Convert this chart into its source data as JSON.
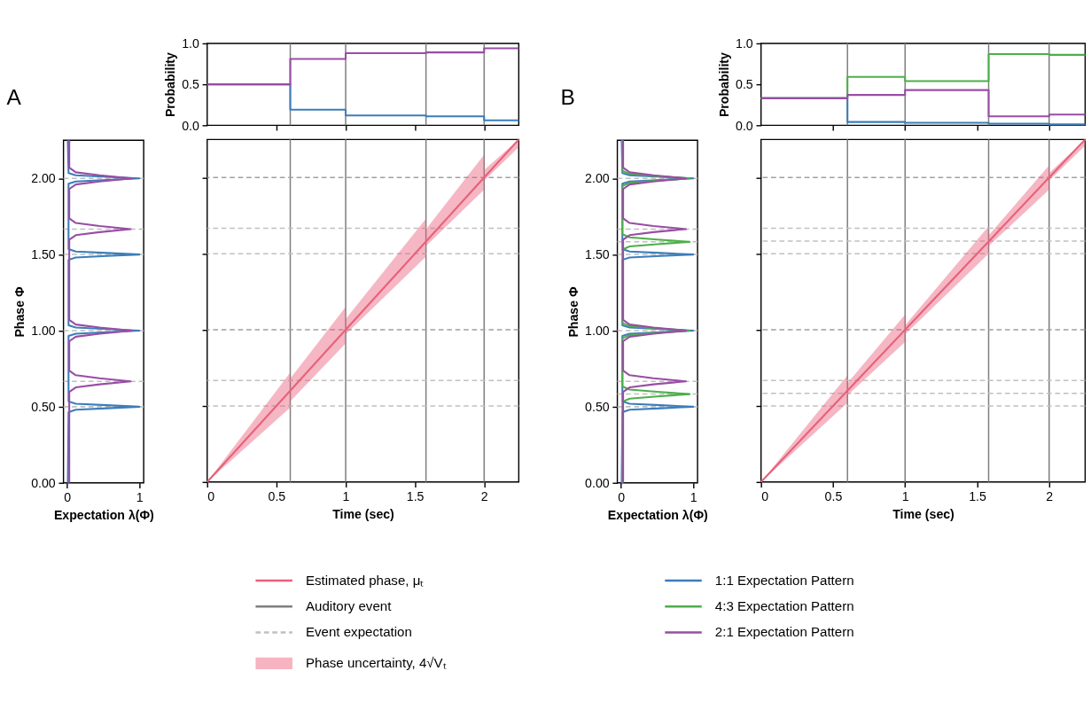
{
  "chart_data": [
    {
      "type": "step",
      "ylabel": "Probability",
      "xlim": [
        0,
        2.25
      ],
      "ylim": [
        0,
        1
      ],
      "xticks": [
        {
          "value": 0.5,
          "label": null
        },
        {
          "value": 1,
          "label": null
        },
        {
          "value": 1.5,
          "label": null
        },
        {
          "value": 2,
          "label": null
        }
      ],
      "yticks": [
        {
          "value": 0,
          "label": "0.0"
        },
        {
          "value": 0.5,
          "label": "0.5"
        },
        {
          "value": 1,
          "label": "1.0"
        }
      ],
      "tick_labels": "y",
      "series": [
        {
          "color": "#3b7dba",
          "x": [
            0,
            0.6,
            1.0,
            1.58,
            2.0,
            2.25
          ],
          "values": [
            0.5,
            0.19,
            0.12,
            0.11,
            0.06,
            0.06
          ]
        },
        {
          "color": "#984ea3",
          "x": [
            0,
            0.6,
            1.0,
            1.58,
            2.0,
            2.25
          ],
          "values": [
            0.5,
            0.81,
            0.88,
            0.89,
            0.94,
            0.94
          ]
        }
      ],
      "ref_lines": [
        {
          "axis": "x",
          "value": 0.6,
          "color": "#7f7f7f"
        },
        {
          "axis": "x",
          "value": 1.0,
          "color": "#7f7f7f"
        },
        {
          "axis": "x",
          "value": 1.58,
          "color": "#7f7f7f"
        },
        {
          "axis": "x",
          "value": 2.0,
          "color": "#7f7f7f"
        }
      ]
    },
    {
      "type": "line",
      "title": "A",
      "orientation": "horizontal",
      "xlabel": "Expectation λ(Φ)",
      "ylabel": "Phase Φ",
      "xlim": [
        -0.05,
        1.06
      ],
      "ylim": [
        0,
        2.25
      ],
      "xticks": [
        0,
        1
      ],
      "yticks": [
        {
          "value": 0,
          "label": "0.00"
        },
        {
          "value": 0.5,
          "label": "0.50"
        },
        {
          "value": 1,
          "label": "1.00"
        },
        {
          "value": 1.5,
          "label": "1.50"
        },
        {
          "value": 2,
          "label": "2.00"
        }
      ],
      "series": [
        {
          "color": "#3b7dba",
          "x": [
            0,
            0.465,
            0.48,
            0.49,
            0.5,
            0.51,
            0.52,
            0.535,
            0.965,
            0.98,
            0.99,
            1.0,
            1.01,
            1.02,
            1.035,
            1.465,
            1.48,
            1.49,
            1.5,
            1.51,
            1.52,
            1.535,
            1.965,
            1.98,
            1.99,
            2.0,
            2.01,
            2.02,
            2.035,
            2.25
          ],
          "values": [
            0.01,
            0.02,
            0.12,
            0.55,
            1.0,
            0.55,
            0.12,
            0.02,
            0.02,
            0.12,
            0.55,
            1.0,
            0.55,
            0.12,
            0.02,
            0.02,
            0.12,
            0.55,
            1.0,
            0.55,
            0.12,
            0.02,
            0.02,
            0.12,
            0.55,
            1.0,
            0.55,
            0.12,
            0.02,
            0.01
          ]
        },
        {
          "color": "#984ea3",
          "x": [
            0,
            0.597,
            0.627,
            0.647,
            0.667,
            0.687,
            0.707,
            0.737,
            0.93,
            0.96,
            0.98,
            1.0,
            1.02,
            1.04,
            1.07,
            1.597,
            1.627,
            1.647,
            1.667,
            1.687,
            1.707,
            1.737,
            1.93,
            1.96,
            1.98,
            2.0,
            2.02,
            2.04,
            2.07,
            2.25
          ],
          "values": [
            0.03,
            0.03,
            0.12,
            0.45,
            0.88,
            0.45,
            0.12,
            0.03,
            0.03,
            0.12,
            0.45,
            0.9,
            0.45,
            0.12,
            0.03,
            0.03,
            0.12,
            0.45,
            0.88,
            0.45,
            0.12,
            0.03,
            0.03,
            0.12,
            0.45,
            0.9,
            0.45,
            0.12,
            0.03,
            0.03
          ]
        }
      ],
      "ref_lines": [
        {
          "axis": "y",
          "value": 0.5,
          "color": "#c0c0c0",
          "line_style": "dashed"
        },
        {
          "axis": "y",
          "value": 0.667,
          "color": "#c0c0c0",
          "line_style": "dashed"
        },
        {
          "axis": "y",
          "value": 1.0,
          "color": "#c0c0c0",
          "line_style": "dashed"
        },
        {
          "axis": "y",
          "value": 1.5,
          "color": "#c0c0c0",
          "line_style": "dashed"
        },
        {
          "axis": "y",
          "value": 1.667,
          "color": "#c0c0c0",
          "line_style": "dashed"
        },
        {
          "axis": "y",
          "value": 2.0,
          "color": "#c0c0c0",
          "line_style": "dashed"
        }
      ]
    },
    {
      "type": "line",
      "xlabel": "Time (sec)",
      "xlim": [
        0,
        2.25
      ],
      "ylim": [
        0,
        2.25
      ],
      "xticks": [
        0,
        0.5,
        1,
        1.5,
        2
      ],
      "yticks": [
        {
          "value": 0,
          "label": null
        },
        {
          "value": 0.5,
          "label": null
        },
        {
          "value": 1,
          "label": null
        },
        {
          "value": 1.5,
          "label": null
        },
        {
          "value": 2,
          "label": null
        }
      ],
      "tick_labels": "x",
      "series": [
        {
          "color": "#e8607a",
          "x": [
            0,
            0.6,
            0.6,
            1.0,
            1.0,
            1.58,
            1.58,
            2.0,
            2.0,
            2.25
          ],
          "values": [
            0,
            0.6,
            0.6,
            1.0,
            1.0,
            1.58,
            1.58,
            2.0,
            2.0,
            2.25
          ],
          "lower": [
            0,
            0.49,
            0.53,
            0.91,
            0.97,
            1.48,
            1.55,
            1.92,
            1.98,
            2.2
          ],
          "upper": [
            0,
            0.72,
            0.68,
            1.15,
            1.07,
            1.73,
            1.66,
            2.15,
            2.05,
            2.25
          ]
        }
      ],
      "ref_lines": [
        {
          "axis": "x",
          "value": 0.6,
          "color": "#7f7f7f"
        },
        {
          "axis": "x",
          "value": 1.0,
          "color": "#7f7f7f"
        },
        {
          "axis": "x",
          "value": 1.58,
          "color": "#7f7f7f"
        },
        {
          "axis": "x",
          "value": 2.0,
          "color": "#7f7f7f"
        },
        {
          "axis": "y",
          "value": 0.5,
          "color": "#c0c0c0",
          "line_style": "dashed"
        },
        {
          "axis": "y",
          "value": 0.667,
          "color": "#c0c0c0",
          "line_style": "dashed"
        },
        {
          "axis": "y",
          "value": 1.0,
          "color": "#a0a0a0",
          "line_style": "dashed"
        },
        {
          "axis": "y",
          "value": 1.5,
          "color": "#c0c0c0",
          "line_style": "dashed"
        },
        {
          "axis": "y",
          "value": 1.667,
          "color": "#c0c0c0",
          "line_style": "dashed"
        },
        {
          "axis": "y",
          "value": 2.0,
          "color": "#a0a0a0",
          "line_style": "dashed"
        }
      ]
    },
    {
      "type": "step",
      "ylabel": "Probability",
      "xlim": [
        0,
        2.25
      ],
      "ylim": [
        0,
        1
      ],
      "xticks": [
        {
          "value": 0.5,
          "label": null
        },
        {
          "value": 1,
          "label": null
        },
        {
          "value": 1.5,
          "label": null
        },
        {
          "value": 2,
          "label": null
        }
      ],
      "yticks": [
        {
          "value": 0,
          "label": "0.0"
        },
        {
          "value": 0.5,
          "label": "0.5"
        },
        {
          "value": 1,
          "label": "1.0"
        }
      ],
      "tick_labels": "y",
      "series": [
        {
          "color": "#3b7dba",
          "x": [
            0,
            0.6,
            1.0,
            1.58,
            2.0,
            2.25
          ],
          "values": [
            0.33,
            0.04,
            0.03,
            0.02,
            0.01,
            0.01
          ]
        },
        {
          "color": "#4daf4a",
          "x": [
            0,
            0.6,
            1.0,
            1.58,
            2.0,
            2.25
          ],
          "values": [
            0.33,
            0.59,
            0.54,
            0.87,
            0.86,
            0.86
          ]
        },
        {
          "color": "#984ea3",
          "x": [
            0,
            0.6,
            1.0,
            1.58,
            2.0,
            2.25
          ],
          "values": [
            0.33,
            0.37,
            0.43,
            0.11,
            0.13,
            0.13
          ]
        }
      ],
      "ref_lines": [
        {
          "axis": "x",
          "value": 0.6,
          "color": "#7f7f7f"
        },
        {
          "axis": "x",
          "value": 1.0,
          "color": "#7f7f7f"
        },
        {
          "axis": "x",
          "value": 1.58,
          "color": "#7f7f7f"
        },
        {
          "axis": "x",
          "value": 2.0,
          "color": "#7f7f7f"
        }
      ]
    },
    {
      "type": "line",
      "title": "B",
      "orientation": "horizontal",
      "xlabel": "Expectation λ(Φ)",
      "ylabel": "Phase Φ",
      "xlim": [
        -0.05,
        1.06
      ],
      "ylim": [
        0,
        2.25
      ],
      "xticks": [
        0,
        1
      ],
      "yticks": [
        {
          "value": 0,
          "label": "0.00"
        },
        {
          "value": 0.5,
          "label": "0.50"
        },
        {
          "value": 1,
          "label": "1.00"
        },
        {
          "value": 1.5,
          "label": "1.50"
        },
        {
          "value": 2,
          "label": "2.00"
        }
      ],
      "series": [
        {
          "color": "#3b7dba",
          "x": [
            0,
            0.465,
            0.48,
            0.49,
            0.5,
            0.51,
            0.52,
            0.535,
            0.965,
            0.98,
            0.99,
            1.0,
            1.01,
            1.02,
            1.035,
            1.465,
            1.48,
            1.49,
            1.5,
            1.51,
            1.52,
            1.535,
            1.965,
            1.98,
            1.99,
            2.0,
            2.01,
            2.02,
            2.035,
            2.25
          ],
          "values": [
            0.01,
            0.02,
            0.12,
            0.55,
            1.0,
            0.55,
            0.12,
            0.02,
            0.02,
            0.12,
            0.55,
            1.0,
            0.55,
            0.12,
            0.02,
            0.02,
            0.12,
            0.55,
            1.0,
            0.55,
            0.12,
            0.02,
            0.02,
            0.12,
            0.55,
            1.0,
            0.55,
            0.12,
            0.02,
            0.01
          ]
        },
        {
          "color": "#4daf4a",
          "x": [
            0,
            0.533,
            0.553,
            0.568,
            0.583,
            0.598,
            0.613,
            0.633,
            0.95,
            0.97,
            0.985,
            1.0,
            1.015,
            1.03,
            1.05,
            1.533,
            1.553,
            1.568,
            1.583,
            1.598,
            1.613,
            1.633,
            1.95,
            1.97,
            1.985,
            2.0,
            2.015,
            2.03,
            2.05,
            2.25
          ],
          "values": [
            0.02,
            0.02,
            0.12,
            0.5,
            0.95,
            0.5,
            0.12,
            0.02,
            0.02,
            0.12,
            0.5,
            0.95,
            0.5,
            0.12,
            0.02,
            0.02,
            0.12,
            0.5,
            0.95,
            0.5,
            0.12,
            0.02,
            0.02,
            0.12,
            0.5,
            0.95,
            0.5,
            0.12,
            0.02,
            0.02
          ]
        },
        {
          "color": "#984ea3",
          "x": [
            0,
            0.597,
            0.627,
            0.647,
            0.667,
            0.687,
            0.707,
            0.737,
            0.93,
            0.96,
            0.98,
            1.0,
            1.02,
            1.04,
            1.07,
            1.597,
            1.627,
            1.647,
            1.667,
            1.687,
            1.707,
            1.737,
            1.93,
            1.96,
            1.98,
            2.0,
            2.02,
            2.04,
            2.07,
            2.25
          ],
          "values": [
            0.03,
            0.03,
            0.12,
            0.45,
            0.9,
            0.45,
            0.12,
            0.03,
            0.03,
            0.12,
            0.45,
            0.9,
            0.45,
            0.12,
            0.03,
            0.03,
            0.12,
            0.45,
            0.9,
            0.45,
            0.12,
            0.03,
            0.03,
            0.12,
            0.45,
            0.9,
            0.45,
            0.12,
            0.03,
            0.03
          ]
        }
      ],
      "ref_lines": [
        {
          "axis": "y",
          "value": 0.5,
          "color": "#c0c0c0",
          "line_style": "dashed"
        },
        {
          "axis": "y",
          "value": 0.583,
          "color": "#c0c0c0",
          "line_style": "dashed"
        },
        {
          "axis": "y",
          "value": 0.667,
          "color": "#c0c0c0",
          "line_style": "dashed"
        },
        {
          "axis": "y",
          "value": 1.0,
          "color": "#c0c0c0",
          "line_style": "dashed"
        },
        {
          "axis": "y",
          "value": 1.5,
          "color": "#c0c0c0",
          "line_style": "dashed"
        },
        {
          "axis": "y",
          "value": 1.583,
          "color": "#c0c0c0",
          "line_style": "dashed"
        },
        {
          "axis": "y",
          "value": 1.667,
          "color": "#c0c0c0",
          "line_style": "dashed"
        },
        {
          "axis": "y",
          "value": 2.0,
          "color": "#c0c0c0",
          "line_style": "dashed"
        }
      ]
    },
    {
      "type": "line",
      "xlabel": "Time (sec)",
      "xlim": [
        0,
        2.25
      ],
      "ylim": [
        0,
        2.25
      ],
      "xticks": [
        0,
        0.5,
        1,
        1.5,
        2
      ],
      "yticks": [
        {
          "value": 0,
          "label": null
        },
        {
          "value": 0.5,
          "label": null
        },
        {
          "value": 1,
          "label": null
        },
        {
          "value": 1.5,
          "label": null
        },
        {
          "value": 2,
          "label": null
        }
      ],
      "tick_labels": "x",
      "series": [
        {
          "color": "#e8607a",
          "x": [
            0,
            0.6,
            0.6,
            1.0,
            1.0,
            1.58,
            1.58,
            2.0,
            2.0,
            2.25
          ],
          "values": [
            0,
            0.6,
            0.6,
            1.0,
            1.0,
            1.58,
            1.58,
            2.0,
            2.0,
            2.25
          ],
          "lower": [
            0,
            0.52,
            0.57,
            0.92,
            0.97,
            1.5,
            1.55,
            1.92,
            1.98,
            2.21
          ],
          "upper": [
            0,
            0.7,
            0.65,
            1.1,
            1.03,
            1.68,
            1.62,
            2.08,
            2.03,
            2.25
          ]
        }
      ],
      "ref_lines": [
        {
          "axis": "x",
          "value": 0.6,
          "color": "#7f7f7f"
        },
        {
          "axis": "x",
          "value": 1.0,
          "color": "#7f7f7f"
        },
        {
          "axis": "x",
          "value": 1.58,
          "color": "#7f7f7f"
        },
        {
          "axis": "x",
          "value": 2.0,
          "color": "#7f7f7f"
        },
        {
          "axis": "y",
          "value": 0.5,
          "color": "#c0c0c0",
          "line_style": "dashed"
        },
        {
          "axis": "y",
          "value": 0.583,
          "color": "#c0c0c0",
          "line_style": "dashed"
        },
        {
          "axis": "y",
          "value": 0.667,
          "color": "#c0c0c0",
          "line_style": "dashed"
        },
        {
          "axis": "y",
          "value": 1.0,
          "color": "#a0a0a0",
          "line_style": "dashed"
        },
        {
          "axis": "y",
          "value": 1.5,
          "color": "#c0c0c0",
          "line_style": "dashed"
        },
        {
          "axis": "y",
          "value": 1.583,
          "color": "#c0c0c0",
          "line_style": "dashed"
        },
        {
          "axis": "y",
          "value": 1.667,
          "color": "#c0c0c0",
          "line_style": "dashed"
        },
        {
          "axis": "y",
          "value": 2.0,
          "color": "#a0a0a0",
          "line_style": "dashed"
        }
      ]
    },
    {
      "type": "other",
      "legend": "bottom",
      "series": [
        {
          "name": "Estimated phase, μₜ",
          "color": "#e8607a",
          "type": "line"
        },
        {
          "name": "Auditory event",
          "color": "#7f7f7f",
          "type": "line"
        },
        {
          "name": "Event expectation",
          "color": "#c0c0c0",
          "type": "line",
          "line_style": "dashed"
        },
        {
          "name": "Phase uncertainty, 4√Vₜ",
          "color": "#f7b3c0",
          "type": "area"
        },
        {
          "name": "1:1 Expectation Pattern",
          "color": "#3b7dba",
          "type": "line"
        },
        {
          "name": "4:3 Expectation Pattern",
          "color": "#4daf4a",
          "type": "line"
        },
        {
          "name": "2:1 Expectation Pattern",
          "color": "#984ea3",
          "type": "line"
        }
      ]
    }
  ]
}
